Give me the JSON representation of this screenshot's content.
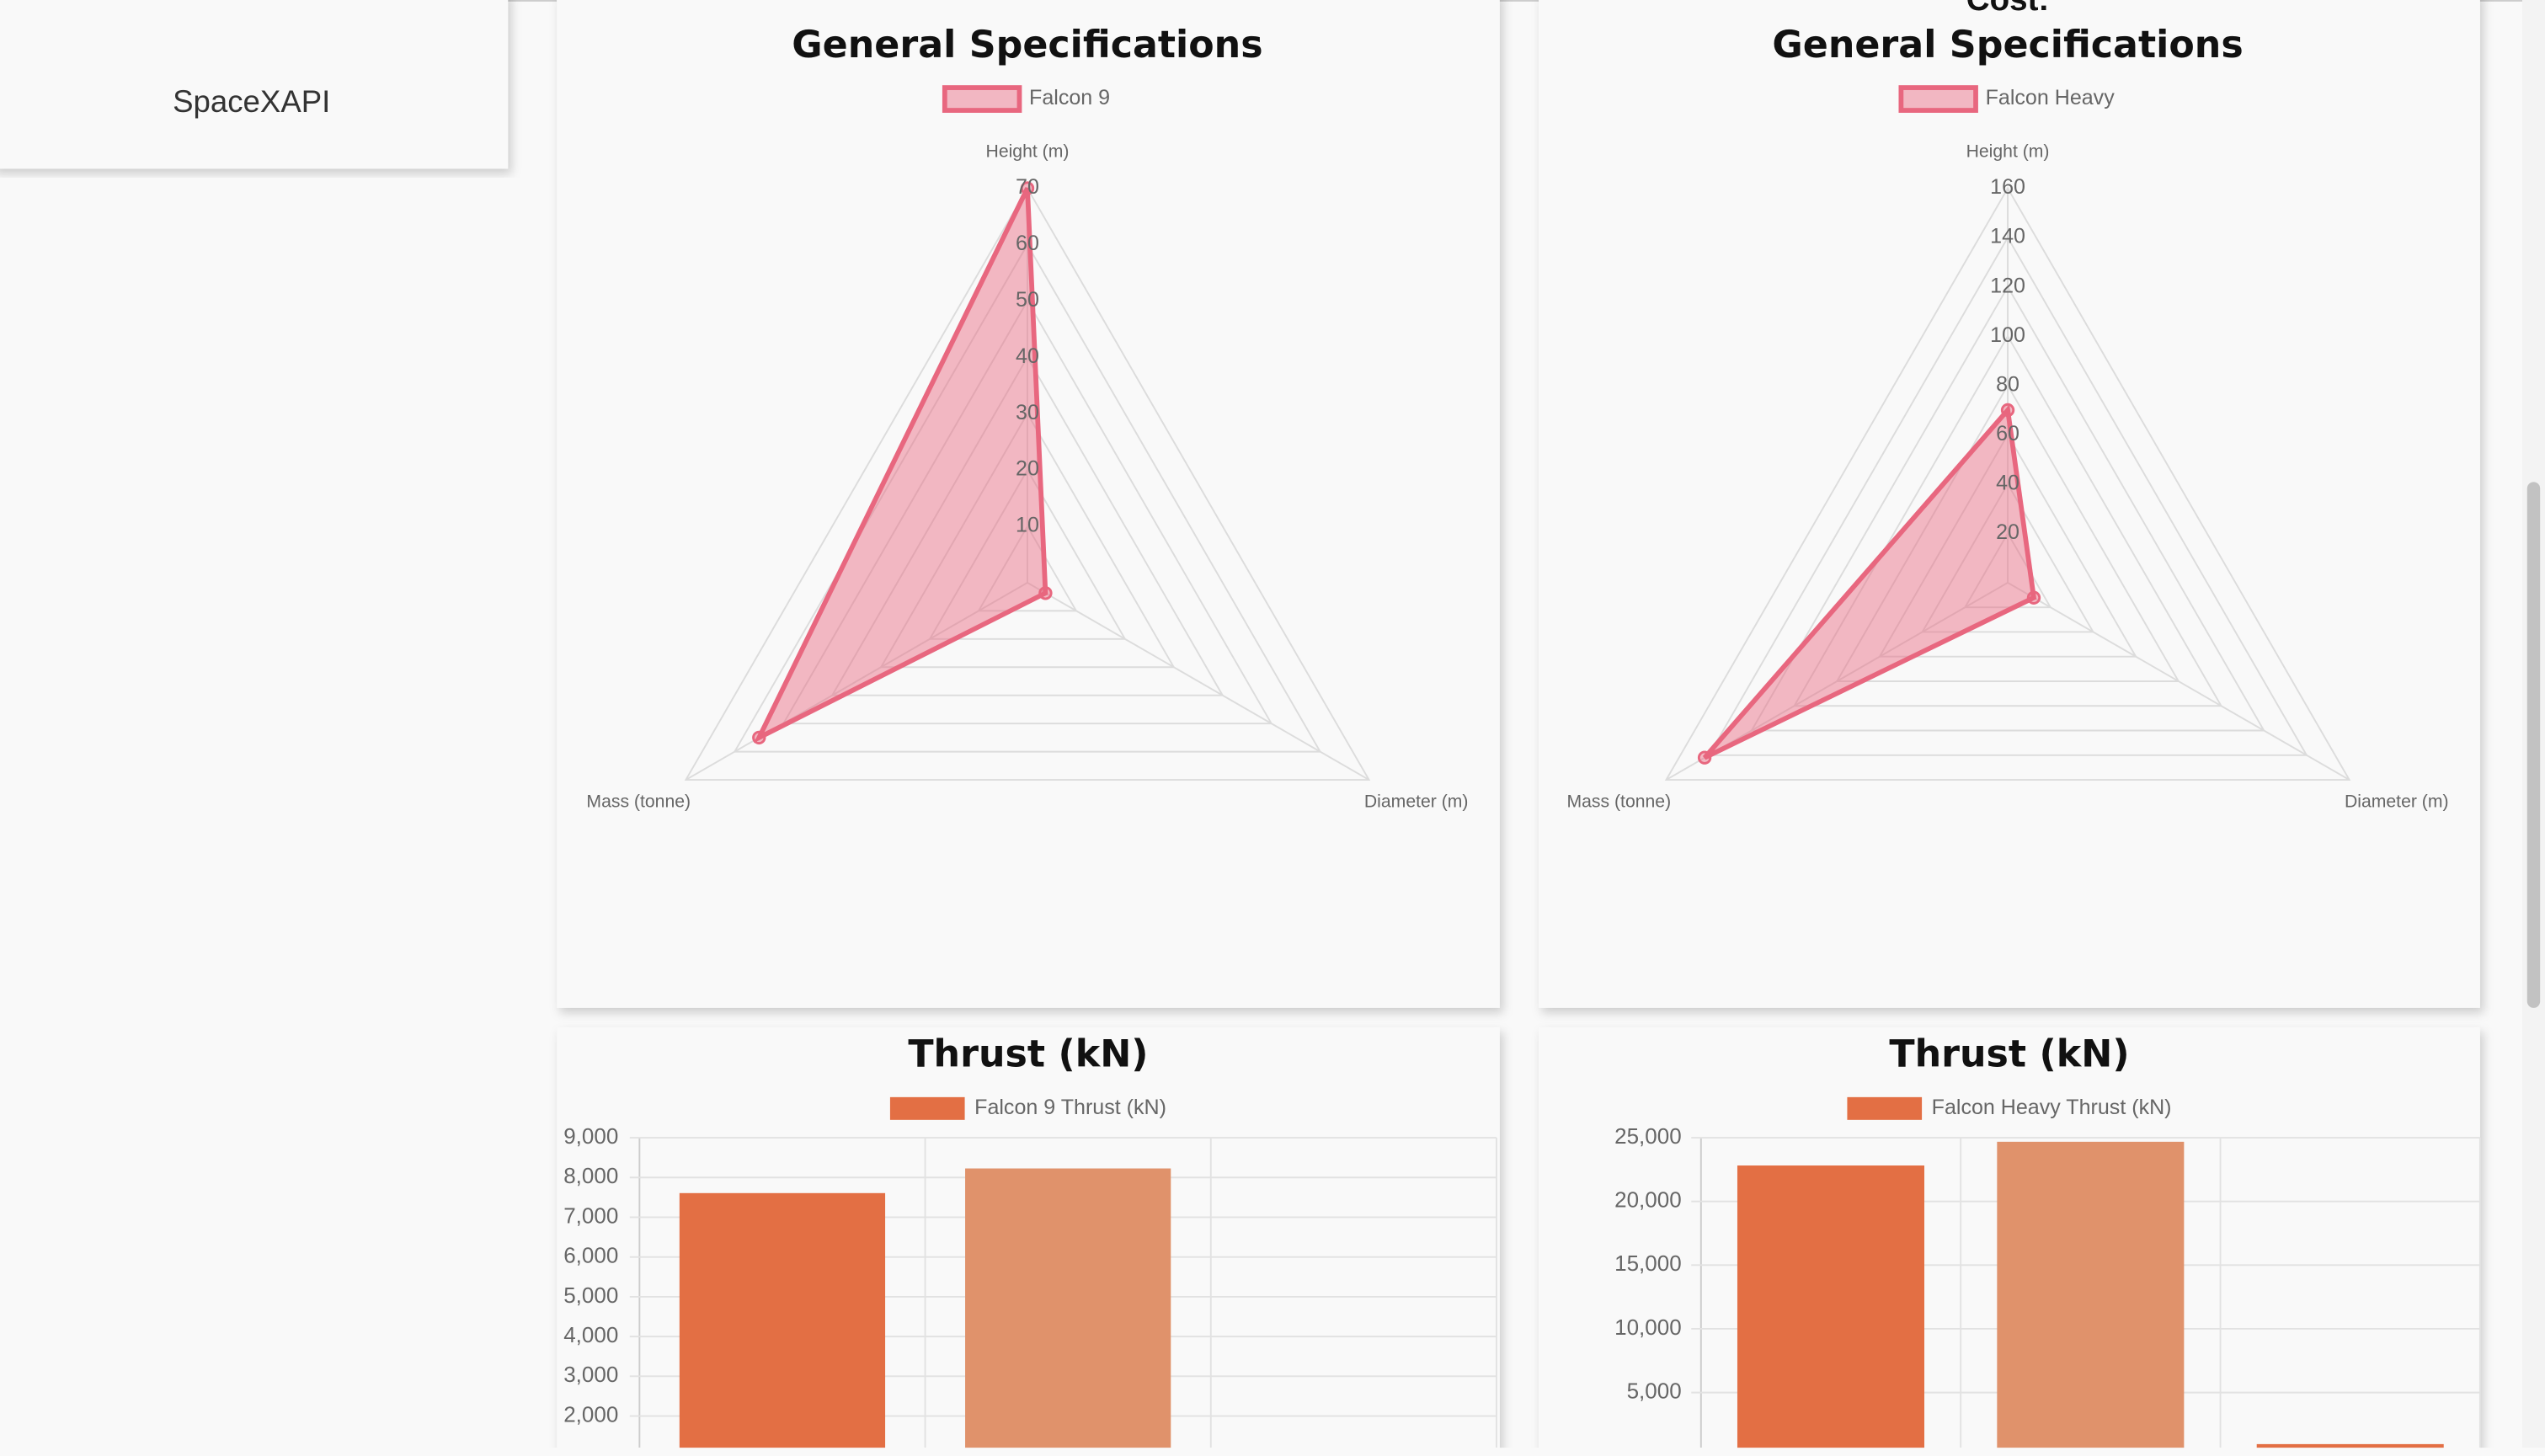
{
  "sidebar": {
    "brand": "SpaceXAPI"
  },
  "section_label": "Cost:",
  "chart_data": [
    {
      "type": "radar",
      "title": "General Specifications",
      "axes": [
        "Height (m)",
        "Diameter (m)",
        "Mass (tonne)"
      ],
      "series": [
        {
          "name": "Falcon 9",
          "color": "#e8677f",
          "values": [
            70,
            3.7,
            55
          ]
        }
      ],
      "ylim": [
        0,
        70
      ],
      "yticks": [
        10,
        20,
        30,
        40,
        50,
        60,
        70
      ],
      "grid": true
    },
    {
      "type": "radar",
      "title": "General Specifications",
      "axes": [
        "Height (m)",
        "Diameter (m)",
        "Mass (tonne)"
      ],
      "series": [
        {
          "name": "Falcon Heavy",
          "color": "#e8677f",
          "values": [
            70,
            12.2,
            142
          ]
        }
      ],
      "ylim": [
        0,
        160
      ],
      "yticks": [
        20,
        40,
        60,
        80,
        100,
        120,
        140,
        160
      ],
      "grid": true
    },
    {
      "type": "bar",
      "title": "Thrust (kN)",
      "categories": [
        null,
        null,
        null
      ],
      "series": [
        {
          "name": "Falcon 9 Thrust (kN)",
          "color": "#e36f44",
          "bar_colors": [
            "#e36f44",
            "#e0926b",
            "#e36f44"
          ],
          "values": [
            7607,
            8227,
            null
          ]
        }
      ],
      "ylim": [
        0,
        9000
      ],
      "yticks": [
        {
          "value": 2000,
          "label": "2,000"
        },
        {
          "value": 3000,
          "label": "3,000"
        },
        {
          "value": 4000,
          "label": "4,000"
        },
        {
          "value": 5000,
          "label": "5,000"
        },
        {
          "value": 6000,
          "label": "6,000"
        },
        {
          "value": 7000,
          "label": "7,000"
        },
        {
          "value": 8000,
          "label": "8,000"
        },
        {
          "value": 9000,
          "label": "9,000"
        }
      ],
      "grid": true
    },
    {
      "type": "bar",
      "title": "Thrust (kN)",
      "categories": [
        null,
        null,
        null
      ],
      "series": [
        {
          "name": "Falcon Heavy Thrust (kN)",
          "color": "#e36f44",
          "bar_colors": [
            "#e36f44",
            "#e0926b",
            "#e36f44"
          ],
          "values": [
            22819,
            24681,
            950
          ]
        }
      ],
      "ylim": [
        0,
        25000
      ],
      "yticks": [
        {
          "value": 5000,
          "label": "5,000"
        },
        {
          "value": 10000,
          "label": "10,000"
        },
        {
          "value": 15000,
          "label": "15,000"
        },
        {
          "value": 20000,
          "label": "20,000"
        },
        {
          "value": 25000,
          "label": "25,000"
        }
      ],
      "grid": true
    }
  ]
}
